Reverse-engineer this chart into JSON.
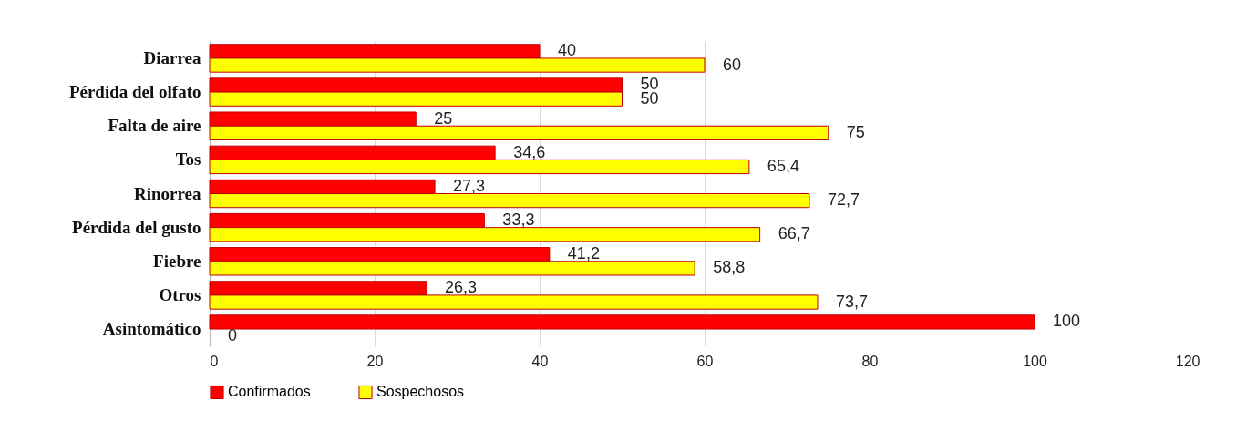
{
  "chart_data": {
    "type": "bar",
    "orientation": "horizontal",
    "categories": [
      "Diarrea",
      "Pérdida del olfato",
      "Falta de aire",
      "Tos",
      "Rinorrea",
      "Pérdida del gusto",
      "Fiebre",
      "Otros",
      "Asintomático"
    ],
    "series": [
      {
        "name": "Confirmados",
        "color": "#ff0000",
        "values": [
          40,
          50,
          25,
          34.6,
          27.3,
          33.3,
          41.2,
          26.3,
          100
        ],
        "value_labels": [
          "40",
          "50",
          "25",
          "34,6",
          "27,3",
          "33,3",
          "41,2",
          "26,3",
          "100"
        ]
      },
      {
        "name": "Sospechosos",
        "color": "#ffff00",
        "values": [
          60,
          50,
          75,
          65.4,
          72.7,
          66.7,
          58.8,
          73.7,
          0
        ],
        "value_labels": [
          "60",
          "50",
          "75",
          "65,4",
          "72,7",
          "66,7",
          "58,8",
          "73,7",
          "0"
        ]
      }
    ],
    "xlim": [
      0,
      120
    ],
    "xticks": [
      0,
      20,
      40,
      60,
      80,
      100,
      120
    ],
    "grid": "x",
    "legend": "bottom"
  }
}
